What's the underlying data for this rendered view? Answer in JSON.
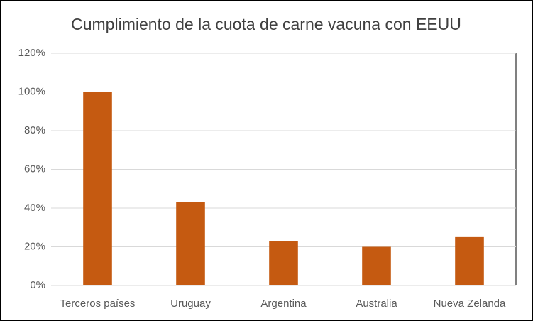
{
  "chart_data": {
    "type": "bar",
    "title": "Cumplimiento  de la cuota de carne vacuna con EEUU",
    "categories": [
      "Terceros países",
      "Uruguay",
      "Argentina",
      "Australia",
      "Nueva Zelanda"
    ],
    "values": [
      100,
      43,
      23,
      20,
      25
    ],
    "color": "#c55a11",
    "ylim": [
      0,
      120
    ],
    "yticks": [
      {
        "value": 0,
        "label": "0%"
      },
      {
        "value": 20,
        "label": "20%"
      },
      {
        "value": 40,
        "label": "40%"
      },
      {
        "value": 60,
        "label": "60%"
      },
      {
        "value": 80,
        "label": "80%"
      },
      {
        "value": 100,
        "label": "100%"
      },
      {
        "value": 120,
        "label": "120%"
      }
    ],
    "grid": true
  }
}
